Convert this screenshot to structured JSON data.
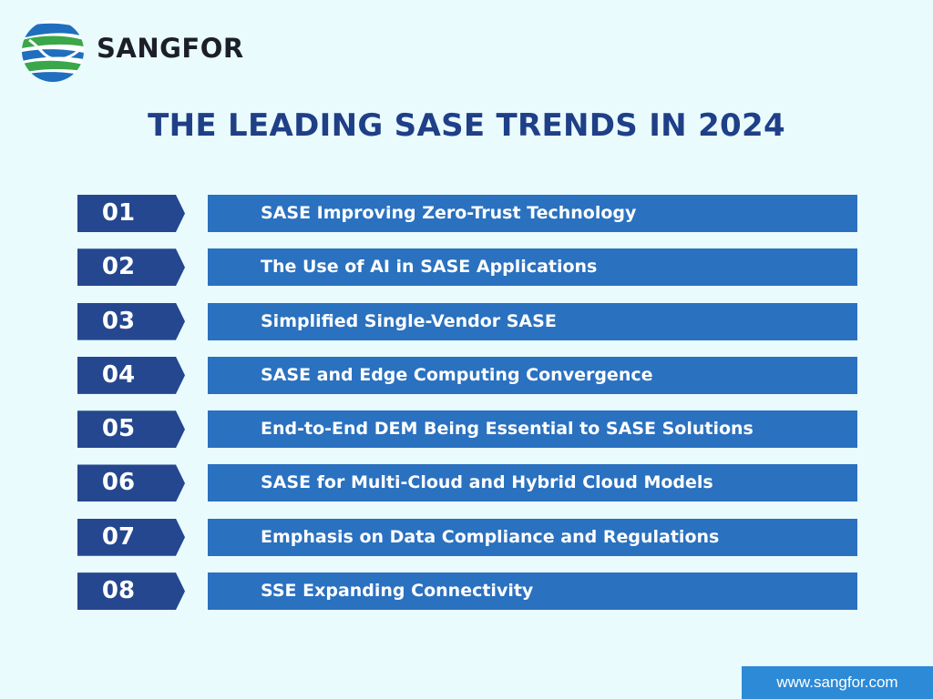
{
  "brand": {
    "name": "SANGFOR",
    "colors": {
      "blue": "#1f6fbe",
      "green": "#3aa74a",
      "dark": "#1c1f2a"
    }
  },
  "title": "THE LEADING SASE TRENDS IN 2024",
  "trends": [
    {
      "number": "01",
      "label": "SASE Improving Zero-Trust Technology"
    },
    {
      "number": "02",
      "label": "The Use of AI in SASE Applications"
    },
    {
      "number": "03",
      "label": "Simplified Single-Vendor SASE"
    },
    {
      "number": "04",
      "label": "SASE and Edge Computing Convergence"
    },
    {
      "number": "05",
      "label": "End-to-End DEM Being Essential to SASE Solutions"
    },
    {
      "number": "06",
      "label": "SASE for Multi-Cloud and Hybrid Cloud Models"
    },
    {
      "number": "07",
      "label": "Emphasis on Data Compliance and Regulations"
    },
    {
      "number": "08",
      "label": "SSE Expanding Connectivity"
    }
  ],
  "footer": {
    "url": "www.sangfor.com"
  },
  "colors": {
    "background": "#eafbfe",
    "title": "#1f3f87",
    "number_box": "#24478f",
    "text_bar": "#2a71c0",
    "footer": "#2d8ad6"
  }
}
